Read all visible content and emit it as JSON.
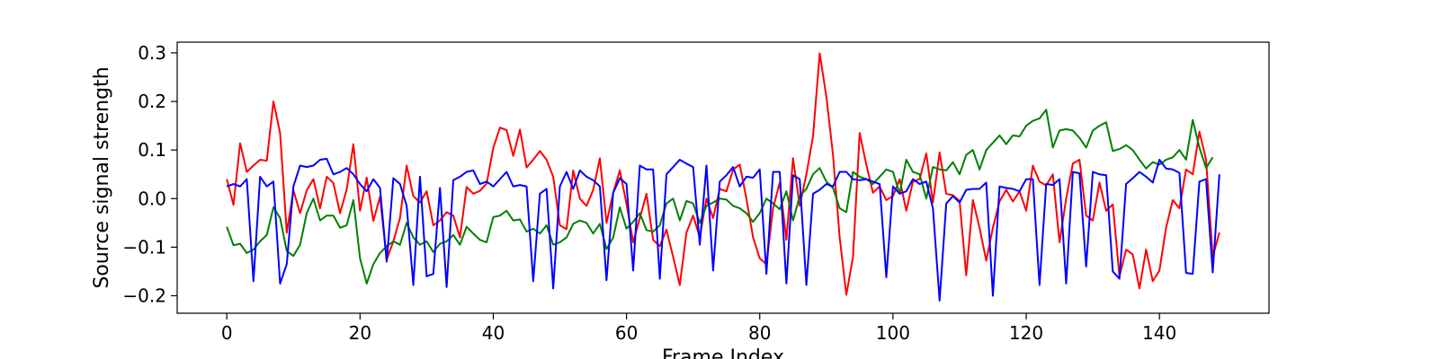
{
  "chart_data": {
    "type": "line",
    "xlabel": "Frame Index",
    "ylabel": "Source signal strength",
    "xlim": [
      -7.45,
      156.45
    ],
    "ylim": [
      -0.236,
      0.322
    ],
    "xticks": [
      0,
      20,
      40,
      60,
      80,
      100,
      120,
      140
    ],
    "yticks": [
      -0.2,
      -0.1,
      0.0,
      0.1,
      0.2,
      0.3
    ],
    "ytick_labels": [
      "−0.2",
      "−0.1",
      "0.0",
      "0.1",
      "0.2",
      "0.3"
    ],
    "grid": false,
    "legend": "none",
    "series": [
      {
        "color": "#ff0000",
        "values": [
          0.04,
          -0.013,
          0.114,
          0.055,
          0.068,
          0.08,
          0.078,
          0.2,
          0.135,
          -0.07,
          0.017,
          -0.03,
          0.017,
          0.04,
          -0.02,
          0.045,
          0.032,
          -0.03,
          0.019,
          0.112,
          -0.025,
          0.043,
          -0.046,
          0.004,
          -0.126,
          -0.088,
          -0.04,
          0.068,
          0.005,
          -0.008,
          0.015,
          -0.055,
          -0.045,
          -0.028,
          -0.035,
          -0.08,
          0.024,
          0.01,
          0.016,
          0.031,
          0.104,
          0.146,
          0.141,
          0.088,
          0.142,
          0.064,
          0.08,
          0.098,
          0.08,
          0.045,
          -0.055,
          -0.063,
          0.058,
          0.0,
          -0.015,
          0.018,
          0.083,
          -0.05,
          0.012,
          0.058,
          -0.011,
          -0.09,
          -0.04,
          0.01,
          -0.085,
          -0.098,
          -0.064,
          -0.12,
          -0.178,
          -0.07,
          -0.035,
          -0.08,
          0.0,
          -0.04,
          0.02,
          0.015,
          0.06,
          0.07,
          0.0,
          -0.08,
          -0.123,
          -0.135,
          -0.02,
          0.033,
          -0.085,
          0.083,
          -0.015,
          0.05,
          0.128,
          0.299,
          0.21,
          0.09,
          -0.08,
          -0.198,
          -0.12,
          0.135,
          0.07,
          0.012,
          0.025,
          -0.003,
          0.005,
          0.04,
          -0.025,
          0.035,
          0.04,
          0.093,
          -0.008,
          0.095,
          0.01,
          0.007,
          -0.005,
          -0.158,
          -0.003,
          -0.06,
          -0.128,
          -0.06,
          -0.006,
          0.018,
          -0.006,
          0.015,
          -0.025,
          0.068,
          0.035,
          0.027,
          0.05,
          -0.09,
          0.0,
          0.072,
          0.08,
          -0.035,
          -0.045,
          0.033,
          -0.025,
          -0.012,
          -0.16,
          -0.105,
          -0.115,
          -0.185,
          -0.105,
          -0.17,
          -0.148,
          -0.06,
          -0.003,
          -0.02,
          0.06,
          0.05,
          0.138,
          0.08,
          -0.12,
          -0.07
        ]
      },
      {
        "color": "#008000",
        "values": [
          -0.058,
          -0.096,
          -0.093,
          -0.112,
          -0.105,
          -0.088,
          -0.075,
          -0.018,
          -0.04,
          -0.108,
          -0.118,
          -0.095,
          -0.03,
          0.0,
          -0.045,
          -0.035,
          -0.035,
          -0.06,
          -0.055,
          -0.003,
          -0.123,
          -0.175,
          -0.135,
          -0.112,
          -0.098,
          -0.088,
          -0.095,
          -0.05,
          -0.08,
          -0.095,
          -0.088,
          -0.11,
          -0.093,
          -0.088,
          -0.075,
          -0.095,
          -0.058,
          -0.072,
          -0.085,
          -0.09,
          -0.038,
          -0.035,
          -0.025,
          -0.045,
          -0.043,
          -0.068,
          -0.062,
          -0.072,
          -0.055,
          -0.095,
          -0.09,
          -0.08,
          -0.052,
          -0.045,
          -0.05,
          -0.072,
          -0.052,
          -0.104,
          -0.08,
          -0.018,
          -0.062,
          -0.048,
          -0.03,
          -0.065,
          -0.068,
          -0.055,
          -0.01,
          0.0,
          -0.045,
          -0.005,
          -0.01,
          -0.05,
          -0.015,
          -0.008,
          0.0,
          -0.002,
          -0.015,
          -0.02,
          -0.03,
          -0.048,
          -0.03,
          0.0,
          -0.01,
          -0.022,
          0.015,
          -0.045,
          0.005,
          0.02,
          0.05,
          0.063,
          0.035,
          0.022,
          -0.02,
          -0.028,
          0.055,
          0.045,
          0.04,
          0.03,
          0.045,
          0.06,
          0.055,
          0.01,
          0.08,
          0.055,
          0.05,
          0.0,
          0.065,
          0.06,
          0.058,
          0.075,
          0.05,
          0.09,
          0.1,
          0.06,
          0.1,
          0.115,
          0.13,
          0.112,
          0.13,
          0.128,
          0.15,
          0.16,
          0.165,
          0.183,
          0.105,
          0.14,
          0.143,
          0.14,
          0.125,
          0.105,
          0.14,
          0.15,
          0.157,
          0.098,
          0.102,
          0.11,
          0.1,
          0.08,
          0.062,
          0.075,
          0.07,
          0.08,
          0.085,
          0.1,
          0.08,
          0.162,
          0.105,
          0.063,
          0.085
        ]
      },
      {
        "color": "#0000ff",
        "values": [
          0.025,
          0.03,
          0.025,
          0.04,
          -0.17,
          0.045,
          0.025,
          0.035,
          -0.175,
          -0.135,
          0.025,
          0.068,
          0.065,
          0.068,
          0.08,
          0.082,
          0.05,
          0.055,
          0.063,
          0.05,
          0.03,
          0.015,
          0.04,
          0.022,
          -0.13,
          0.042,
          0.03,
          -0.015,
          -0.178,
          0.045,
          -0.16,
          -0.155,
          0.022,
          -0.182,
          0.038,
          0.045,
          0.055,
          0.058,
          0.03,
          0.035,
          0.025,
          0.04,
          0.055,
          0.025,
          0.028,
          0.025,
          -0.17,
          0.01,
          0.02,
          -0.185,
          0.025,
          0.055,
          0.02,
          0.058,
          0.045,
          0.038,
          0.025,
          -0.168,
          0.012,
          0.042,
          0.03,
          -0.148,
          0.068,
          0.06,
          0.06,
          -0.165,
          0.05,
          0.065,
          0.08,
          0.072,
          0.065,
          -0.095,
          0.068,
          -0.148,
          0.035,
          0.048,
          0.065,
          0.025,
          0.045,
          0.043,
          0.06,
          -0.155,
          0.055,
          0.055,
          -0.175,
          0.048,
          0.04,
          -0.178,
          0.01,
          0.018,
          0.03,
          0.025,
          0.055,
          0.055,
          0.04,
          0.038,
          0.04,
          0.035,
          0.03,
          -0.162,
          0.025,
          0.01,
          0.015,
          0.04,
          0.03,
          0.035,
          -0.02,
          -0.21,
          -0.01,
          0.005,
          -0.008,
          0.018,
          0.02,
          0.02,
          0.033,
          -0.2,
          0.025,
          0.022,
          0.02,
          0.015,
          0.04,
          0.04,
          -0.178,
          0.03,
          0.028,
          0.04,
          -0.175,
          0.055,
          0.052,
          -0.14,
          0.055,
          0.05,
          0.048,
          -0.15,
          -0.165,
          0.03,
          0.042,
          0.055,
          0.045,
          0.033,
          0.08,
          0.062,
          0.06,
          0.053,
          -0.153,
          -0.155,
          0.035,
          0.04,
          -0.152,
          0.05
        ]
      }
    ]
  }
}
